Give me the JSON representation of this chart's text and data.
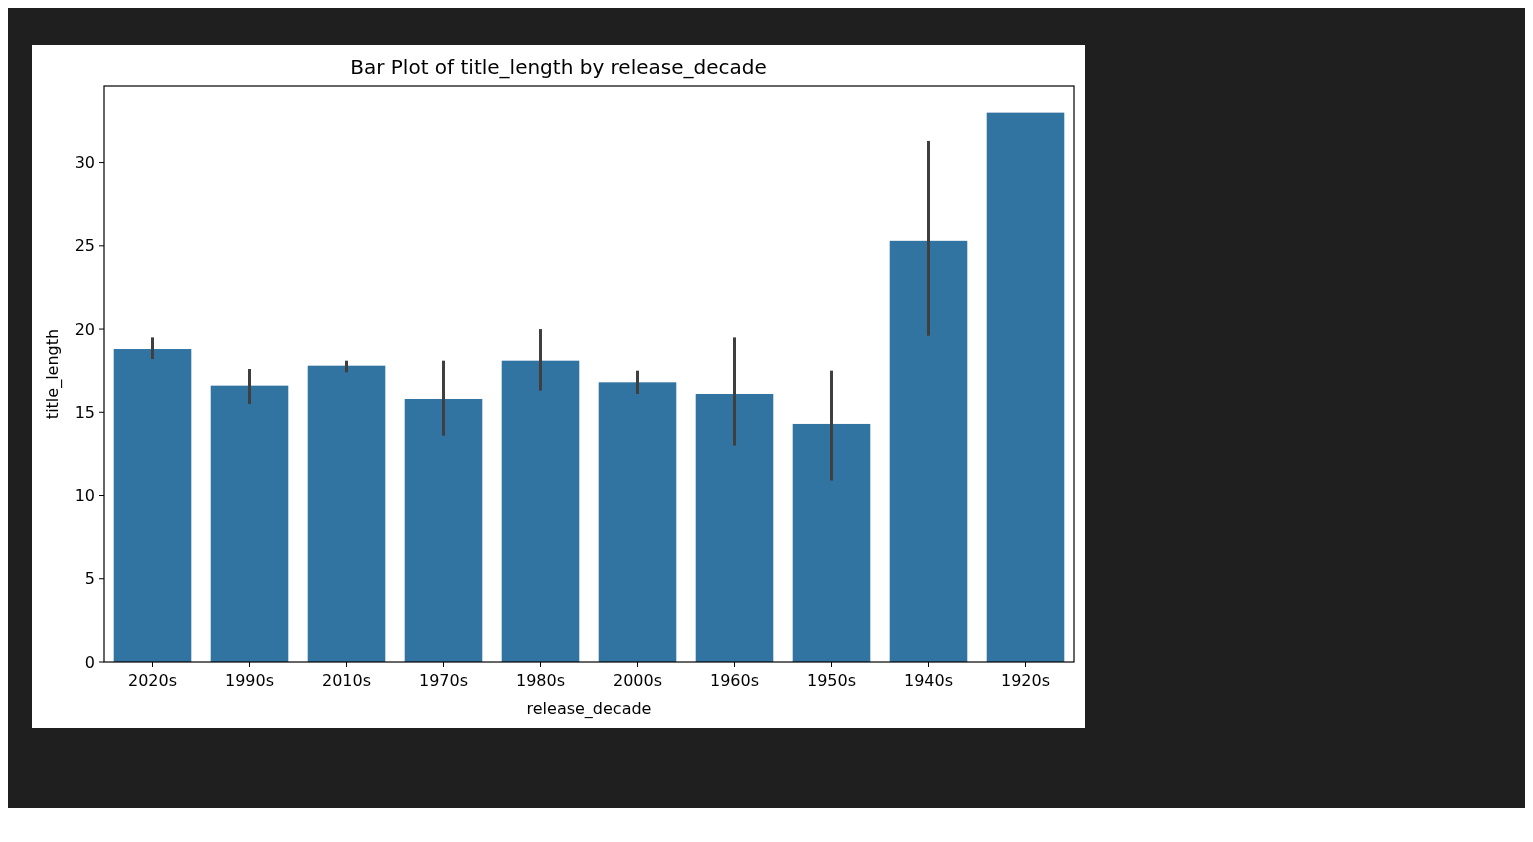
{
  "chart_data": {
    "type": "bar",
    "title": "Bar Plot of title_length by release_decade",
    "xlabel": "release_decade",
    "ylabel": "title_length",
    "categories": [
      "2020s",
      "1990s",
      "2010s",
      "1970s",
      "1980s",
      "2000s",
      "1960s",
      "1950s",
      "1940s",
      "1920s"
    ],
    "values": [
      18.8,
      16.6,
      17.8,
      15.8,
      18.1,
      16.8,
      16.1,
      14.3,
      25.3,
      33.0
    ],
    "errors": [
      [
        18.2,
        19.5
      ],
      [
        15.5,
        17.6
      ],
      [
        17.4,
        18.1
      ],
      [
        13.6,
        18.1
      ],
      [
        16.3,
        20.0
      ],
      [
        16.1,
        17.5
      ],
      [
        13.0,
        19.5
      ],
      [
        10.9,
        17.5
      ],
      [
        19.6,
        31.3
      ],
      null
    ],
    "color": "#3274a1",
    "ylim": [
      0,
      34.6
    ],
    "yticks": [
      0,
      5,
      10,
      15,
      20,
      25,
      30
    ],
    "grid": false
  }
}
